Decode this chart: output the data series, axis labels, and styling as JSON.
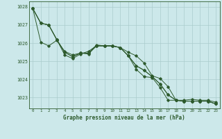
{
  "title": "Graphe pression niveau de la mer (hPa)",
  "bg_color": "#cce8ea",
  "grid_color": "#aacccc",
  "line_color": "#2d5a2d",
  "xlim": [
    -0.5,
    23.5
  ],
  "ylim": [
    1022.4,
    1028.3
  ],
  "yticks": [
    1023,
    1024,
    1025,
    1026,
    1027,
    1028
  ],
  "xticks": [
    0,
    1,
    2,
    3,
    4,
    5,
    6,
    7,
    8,
    9,
    10,
    11,
    12,
    13,
    14,
    15,
    16,
    17,
    18,
    19,
    20,
    21,
    22,
    23
  ],
  "series": {
    "line_max": [
      1027.9,
      1027.1,
      1027.0,
      1026.2,
      1025.35,
      1025.15,
      1025.4,
      1025.55,
      1025.85,
      1025.85,
      1025.85,
      1025.75,
      1025.5,
      1025.3,
      1024.9,
      1024.2,
      1024.05,
      1023.6,
      1022.85,
      1022.85,
      1022.9,
      1022.85,
      1022.85,
      1022.75
    ],
    "line_avg": [
      1027.9,
      1026.05,
      1025.85,
      1026.15,
      1025.55,
      1025.35,
      1025.45,
      1025.4,
      1025.85,
      1025.85,
      1025.85,
      1025.75,
      1025.3,
      1024.55,
      1024.15,
      1024.1,
      1023.55,
      1022.85,
      1022.85,
      1022.8,
      1022.8,
      1022.8,
      1022.8,
      1022.65
    ],
    "line_min": [
      1027.9,
      1027.1,
      1027.0,
      1026.2,
      1025.5,
      1025.25,
      1025.45,
      1025.45,
      1025.9,
      1025.85,
      1025.85,
      1025.75,
      1025.3,
      1024.75,
      1024.5,
      1024.15,
      1023.75,
      1023.15,
      1022.85,
      1022.8,
      1022.8,
      1022.8,
      1022.8,
      1022.65
    ],
    "line_inst": [
      1027.9,
      1027.1,
      1027.0,
      1026.2,
      1025.5,
      1025.25,
      1025.45,
      1025.45,
      1025.85,
      1025.85,
      1025.85,
      1025.75,
      1025.3,
      1024.75,
      1024.5,
      1024.15,
      1023.75,
      1023.15,
      1022.85,
      1022.8,
      1022.8,
      1022.8,
      1022.8,
      1022.65
    ]
  }
}
